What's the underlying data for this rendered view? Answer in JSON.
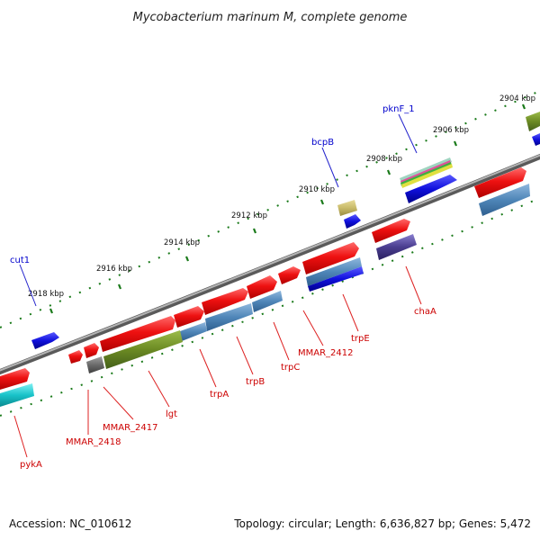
{
  "title": "Mycobacterium marinum M, complete genome",
  "footer": {
    "accession": "Accession: NC_010612",
    "topology": "Topology: circular; Length: 6,636,827 bp; Genes: 5,472"
  },
  "ticks": [
    "2904 kbp",
    "2906 kbp",
    "2908 kbp",
    "2910 kbp",
    "2912 kbp",
    "2914 kbp",
    "2916 kbp",
    "2918 kbp"
  ],
  "genes": {
    "red_labels": [
      "pykA",
      "MMAR_2418",
      "MMAR_2417",
      "lgt",
      "trpA",
      "trpB",
      "trpC",
      "MMAR_2412",
      "trpE",
      "chaA"
    ],
    "blue_labels": [
      "cut1",
      "bcpB",
      "pknF_1"
    ]
  },
  "colors": {
    "backbone": "#808080",
    "gene_red": "#ee1111",
    "gene_blue": "#1010dd",
    "gene_steel": "#4f86b8",
    "gene_olive": "#6b8a23",
    "gene_cyan": "#19c3c9",
    "gene_purple": "#4a3d8f",
    "gene_khaki": "#c9bb6a",
    "tick_green": "#1a7a1a",
    "label_red": "#cc0000",
    "label_blue": "#0000cc"
  }
}
